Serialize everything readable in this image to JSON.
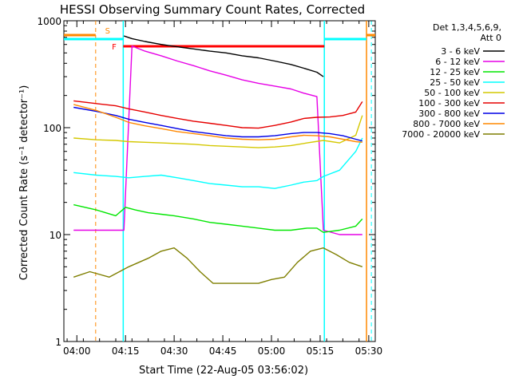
{
  "colors": {
    "3-6": "#000000",
    "6-12": "#e600e6",
    "12-25": "#00e600",
    "25-50": "#00ffff",
    "50-100": "#d4c800",
    "100-300": "#e60000",
    "300-800": "#0000e6",
    "800-7000": "#ff8800",
    "7000-20000": "#7f7f00",
    "markers_orange": "#ff8800",
    "markers_cyan": "#00ffff",
    "flag_red": "#ff0000"
  },
  "chart_data": {
    "type": "line",
    "title": "HESSI Observing Summary Count Rates, Corrected",
    "xlabel": "Start Time (22-Aug-05 03:56:02)",
    "ylabel": "Corrected Count Rate (s⁻¹ detector⁻¹)",
    "y_scale": "log",
    "ylim": [
      1,
      1000
    ],
    "xlim_minutes": [
      0,
      96
    ],
    "x_ticks": [
      {
        "label": "04:00",
        "minute": 4
      },
      {
        "label": "04:15",
        "minute": 19
      },
      {
        "label": "04:30",
        "minute": 34
      },
      {
        "label": "04:45",
        "minute": 49
      },
      {
        "label": "05:00",
        "minute": 64
      },
      {
        "label": "05:15",
        "minute": 79
      },
      {
        "label": "05:30",
        "minute": 94
      }
    ],
    "y_ticks": [
      {
        "label": "1",
        "value": 1
      },
      {
        "label": "10",
        "value": 10
      },
      {
        "label": "100",
        "value": 100
      },
      {
        "label": "1000",
        "value": 1000
      }
    ],
    "legend": {
      "header1": "Det 1,3,4,5,6,9,",
      "header2": "Att 0",
      "placement": "right"
    },
    "flag_labels": {
      "s": "S",
      "f": "F"
    },
    "series": [
      {
        "key": "3-6",
        "name": "3 - 6 keV",
        "x": [
          18.5,
          21,
          25,
          30,
          35,
          40,
          45,
          50,
          55,
          60,
          65,
          70,
          74,
          78,
          80
        ],
        "y": [
          720,
          680,
          640,
          600,
          570,
          545,
          520,
          500,
          470,
          450,
          420,
          390,
          360,
          330,
          300
        ]
      },
      {
        "key": "6-12",
        "name": "6 - 12 keV",
        "x": [
          3,
          16,
          18.5,
          21,
          25,
          30,
          35,
          40,
          45,
          50,
          55,
          60,
          65,
          70,
          74,
          78,
          80,
          85,
          90,
          92
        ],
        "y": [
          11,
          11,
          11,
          580,
          520,
          470,
          420,
          380,
          340,
          310,
          280,
          260,
          245,
          230,
          210,
          195,
          11,
          10,
          10,
          10
        ]
      },
      {
        "key": "12-25",
        "name": "12 - 25 keV",
        "x": [
          3,
          10,
          16,
          19,
          22,
          26,
          30,
          34,
          40,
          45,
          50,
          55,
          60,
          65,
          70,
          75,
          78,
          80,
          85,
          90,
          92
        ],
        "y": [
          19,
          17,
          15,
          18,
          17,
          16,
          15.5,
          15,
          14,
          13,
          12.5,
          12,
          11.5,
          11,
          11,
          11.5,
          11.5,
          10.5,
          11,
          12,
          14
        ]
      },
      {
        "key": "25-50",
        "name": "25 - 50 keV",
        "x": [
          3,
          10,
          16,
          20,
          25,
          30,
          35,
          40,
          45,
          50,
          55,
          60,
          65,
          70,
          74,
          78,
          80,
          85,
          90,
          92
        ],
        "y": [
          38,
          36,
          35,
          34,
          35,
          36,
          34,
          32,
          30,
          29,
          28,
          28,
          27,
          29,
          31,
          32,
          35,
          40,
          60,
          80
        ]
      },
      {
        "key": "50-100",
        "name": "50 - 100 keV",
        "x": [
          3,
          10,
          16,
          20,
          25,
          30,
          35,
          40,
          45,
          50,
          55,
          60,
          65,
          70,
          75,
          80,
          85,
          90,
          92
        ],
        "y": [
          80,
          77,
          76,
          74,
          73,
          72,
          71,
          70,
          68,
          67,
          66,
          65,
          66,
          68,
          72,
          76,
          72,
          85,
          130
        ]
      },
      {
        "key": "100-300",
        "name": "100 - 300 keV",
        "x": [
          3,
          10,
          16,
          20,
          25,
          30,
          35,
          40,
          45,
          50,
          55,
          60,
          65,
          70,
          74,
          78,
          82,
          86,
          90,
          92
        ],
        "y": [
          178,
          168,
          160,
          150,
          140,
          130,
          122,
          115,
          110,
          105,
          100,
          99,
          105,
          113,
          122,
          125,
          126,
          130,
          140,
          175
        ]
      },
      {
        "key": "300-800",
        "name": "300 - 800 keV",
        "x": [
          3,
          10,
          16,
          20,
          25,
          30,
          35,
          40,
          45,
          50,
          55,
          60,
          65,
          70,
          74,
          78,
          82,
          86,
          90,
          92
        ],
        "y": [
          155,
          142,
          130,
          120,
          112,
          105,
          98,
          92,
          88,
          84,
          82,
          82,
          84,
          88,
          90,
          90,
          88,
          84,
          78,
          75
        ]
      },
      {
        "key": "800-7000",
        "name": "800 - 7000 keV",
        "x": [
          3,
          10,
          16,
          20,
          25,
          30,
          35,
          40,
          45,
          50,
          55,
          60,
          65,
          70,
          74,
          78,
          82,
          86,
          90,
          92
        ],
        "y": [
          165,
          145,
          125,
          112,
          104,
          98,
          92,
          88,
          84,
          80,
          78,
          77,
          78,
          82,
          85,
          84,
          82,
          78,
          74,
          73
        ]
      },
      {
        "key": "7000-20000",
        "name": "7000 - 20000 keV",
        "x": [
          3,
          8,
          14,
          20,
          26,
          30,
          34,
          38,
          42,
          46,
          50,
          55,
          60,
          64,
          68,
          72,
          76,
          80,
          84,
          88,
          92
        ],
        "y": [
          4,
          4.5,
          4,
          5,
          6,
          7,
          7.5,
          6,
          4.5,
          3.5,
          3.5,
          3.5,
          3.5,
          3.8,
          4,
          5.5,
          7,
          7.5,
          6.5,
          5.5,
          5
        ]
      }
    ]
  }
}
